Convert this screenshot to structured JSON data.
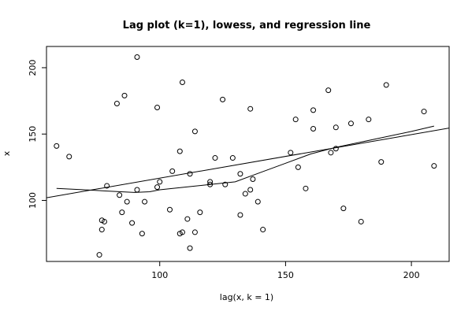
{
  "chart_data": {
    "type": "scatter",
    "title": "Lag plot (k=1), lowess, and regression line",
    "xlabel": "lag(x, k = 1)",
    "ylabel": "x",
    "xlim": [
      55,
      215
    ],
    "ylim": [
      54,
      216
    ],
    "x_ticks": [
      100,
      150,
      200
    ],
    "y_ticks": [
      100,
      150,
      200
    ],
    "grid": false,
    "points": [
      [
        59,
        141
      ],
      [
        64,
        133
      ],
      [
        76,
        59
      ],
      [
        77,
        85
      ],
      [
        77,
        78
      ],
      [
        78,
        84
      ],
      [
        79,
        111
      ],
      [
        83,
        173
      ],
      [
        84,
        104
      ],
      [
        85,
        91
      ],
      [
        86,
        179
      ],
      [
        87,
        99
      ],
      [
        89,
        83
      ],
      [
        91,
        208
      ],
      [
        91,
        108
      ],
      [
        93,
        75
      ],
      [
        94,
        99
      ],
      [
        99,
        170
      ],
      [
        99,
        110
      ],
      [
        100,
        114
      ],
      [
        104,
        93
      ],
      [
        105,
        122
      ],
      [
        108,
        137
      ],
      [
        108,
        75
      ],
      [
        109,
        189
      ],
      [
        109,
        76
      ],
      [
        111,
        86
      ],
      [
        112,
        120
      ],
      [
        112,
        64
      ],
      [
        114,
        76
      ],
      [
        114,
        152
      ],
      [
        116,
        91
      ],
      [
        120,
        112
      ],
      [
        120,
        114
      ],
      [
        122,
        132
      ],
      [
        125,
        176
      ],
      [
        126,
        112
      ],
      [
        129,
        132
      ],
      [
        132,
        120
      ],
      [
        132,
        89
      ],
      [
        134,
        105
      ],
      [
        136,
        169
      ],
      [
        136,
        108
      ],
      [
        137,
        116
      ],
      [
        139,
        99
      ],
      [
        141,
        78
      ],
      [
        152,
        136
      ],
      [
        154,
        161
      ],
      [
        155,
        125
      ],
      [
        158,
        109
      ],
      [
        161,
        168
      ],
      [
        161,
        154
      ],
      [
        167,
        183
      ],
      [
        168,
        136
      ],
      [
        170,
        155
      ],
      [
        170,
        139
      ],
      [
        173,
        94
      ],
      [
        176,
        158
      ],
      [
        180,
        84
      ],
      [
        183,
        161
      ],
      [
        188,
        129
      ],
      [
        190,
        187
      ],
      [
        205,
        167
      ],
      [
        209,
        126
      ]
    ],
    "regression_line": {
      "x": [
        55,
        215
      ],
      "y": [
        102,
        154.5
      ]
    },
    "lowess": {
      "x": [
        59,
        70,
        80,
        90,
        96,
        100,
        110,
        120,
        130,
        140,
        150,
        160,
        170,
        180,
        190,
        200,
        209
      ],
      "y": [
        109,
        108,
        107,
        106,
        106.5,
        108,
        110,
        112,
        114,
        121,
        128,
        135,
        140,
        144,
        148,
        152,
        156
      ]
    }
  }
}
